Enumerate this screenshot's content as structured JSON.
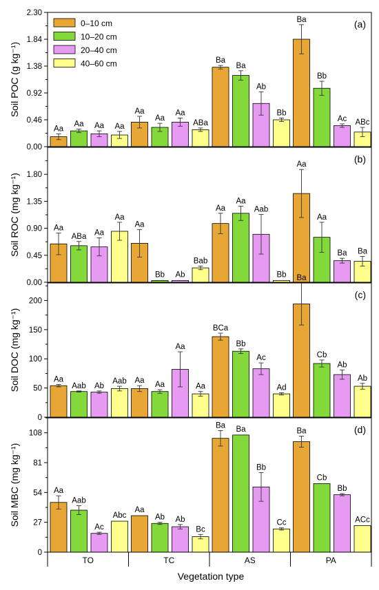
{
  "figure": {
    "xlabel": "Vegetation type",
    "categories": [
      "TO",
      "TC",
      "AS",
      "PA"
    ]
  },
  "legend": {
    "position": "top-left",
    "entries": [
      "0–10 cm",
      "10–20 cm",
      "20–40 cm",
      "40–60 cm"
    ],
    "colors": [
      "#E8A735",
      "#84D93A",
      "#E69AF2",
      "#FFFF8C"
    ]
  },
  "chart_data": [
    {
      "type": "bar",
      "panel": "(a)",
      "ylabel": "Soil POC (g kg⁻¹)",
      "ylim": [
        0,
        2.3
      ],
      "yticks": [
        "0.00",
        "0.46",
        "0.92",
        "1.38",
        "1.84",
        "2.30"
      ],
      "categories": [
        "TO",
        "TC",
        "AS",
        "PA"
      ],
      "series": [
        {
          "name": "0–10 cm",
          "values": [
            0.17,
            0.42,
            1.36,
            1.84
          ],
          "errors": [
            0.05,
            0.1,
            0.03,
            0.25
          ],
          "labels": [
            "Aa",
            "Aa",
            "Ba",
            "Ba"
          ]
        },
        {
          "name": "10–20 cm",
          "values": [
            0.27,
            0.33,
            1.22,
            1.0
          ],
          "errors": [
            0.03,
            0.07,
            0.08,
            0.12
          ],
          "labels": [
            "Aa",
            "Aa",
            "Ba",
            "Bb"
          ]
        },
        {
          "name": "20–40 cm",
          "values": [
            0.22,
            0.42,
            0.74,
            0.36
          ],
          "errors": [
            0.05,
            0.07,
            0.2,
            0.03
          ],
          "labels": [
            "Aa",
            "Aa",
            "Ab",
            "Ac"
          ]
        },
        {
          "name": "40–60 cm",
          "values": [
            0.2,
            0.29,
            0.46,
            0.25
          ],
          "errors": [
            0.06,
            0.03,
            0.03,
            0.08
          ],
          "labels": [
            "Aa",
            "ABa",
            "Bb",
            "ABc"
          ]
        }
      ]
    },
    {
      "type": "bar",
      "panel": "(b)",
      "ylabel": "Soil ROC (mg kg⁻¹)",
      "ylim": [
        0,
        2.25
      ],
      "yticks": [
        "0.00",
        "0.45",
        "0.90",
        "1.35",
        "1.80"
      ],
      "categories": [
        "TO",
        "TC",
        "AS",
        "PA"
      ],
      "series": [
        {
          "name": "0–10 cm",
          "values": [
            0.64,
            0.65,
            0.98,
            1.48
          ],
          "errors": [
            0.18,
            0.23,
            0.17,
            0.4
          ],
          "labels": [
            "Aa",
            "Aa",
            "Aa",
            "Aa"
          ]
        },
        {
          "name": "10–20 cm",
          "values": [
            0.61,
            0.03,
            1.15,
            0.75
          ],
          "errors": [
            0.07,
            0.0,
            0.12,
            0.25
          ],
          "labels": [
            "ABa",
            "Bb",
            "Aa",
            "Aa"
          ]
        },
        {
          "name": "20–40 cm",
          "values": [
            0.59,
            0.03,
            0.8,
            0.36
          ],
          "errors": [
            0.15,
            0.0,
            0.33,
            0.04
          ],
          "labels": [
            "Aa",
            "Ab",
            "Aab",
            "Ba"
          ]
        },
        {
          "name": "40–60 cm",
          "values": [
            0.85,
            0.24,
            0.03,
            0.35
          ],
          "errors": [
            0.15,
            0.03,
            0.0,
            0.08
          ],
          "labels": [
            "Aa",
            "Bab",
            "Bb",
            "Ba"
          ]
        }
      ]
    },
    {
      "type": "bar",
      "panel": "(c)",
      "ylabel": "Soil DOC (mg kg⁻¹)",
      "ylim": [
        0,
        230
      ],
      "yticks": [
        "0",
        "50",
        "100",
        "150",
        "200"
      ],
      "categories": [
        "TO",
        "TC",
        "AS",
        "PA"
      ],
      "series": [
        {
          "name": "0–10 cm",
          "values": [
            54,
            49,
            138,
            194
          ],
          "errors": [
            2,
            5,
            6,
            36
          ],
          "labels": [
            "Aa",
            "Aa",
            "BCa",
            "Ba"
          ]
        },
        {
          "name": "10–20 cm",
          "values": [
            44,
            44,
            113,
            92
          ],
          "errors": [
            1,
            3,
            4,
            6
          ],
          "labels": [
            "Aab",
            "Aa",
            "Bb",
            "Cb"
          ]
        },
        {
          "name": "20–40 cm",
          "values": [
            43,
            82,
            83,
            73
          ],
          "errors": [
            2,
            30,
            10,
            8
          ],
          "labels": [
            "Ab",
            "Aa",
            "Ac",
            "Ab"
          ]
        },
        {
          "name": "40–60 cm",
          "values": [
            49,
            40,
            40,
            53
          ],
          "errors": [
            4,
            4,
            2,
            5
          ],
          "labels": [
            "Aab",
            "Aa",
            "Ad",
            "Ab"
          ]
        }
      ]
    },
    {
      "type": "bar",
      "panel": "(d)",
      "ylabel": "Soil MBC (mg kg⁻¹)",
      "ylim": [
        0,
        121.5
      ],
      "yticks": [
        "0",
        "27",
        "54",
        "81",
        "108"
      ],
      "categories": [
        "TO",
        "TC",
        "AS",
        "PA"
      ],
      "series": [
        {
          "name": "0–10 cm",
          "values": [
            45,
            33,
            103,
            100
          ],
          "errors": [
            6,
            0,
            7,
            5
          ],
          "labels": [
            "Aa",
            "Aa",
            "Ba",
            "Ba"
          ]
        },
        {
          "name": "10–20 cm",
          "values": [
            38,
            26,
            106,
            62
          ],
          "errors": [
            4,
            1,
            0,
            0
          ],
          "labels": [
            "Aab",
            "Ab",
            "Ba",
            "Cb"
          ]
        },
        {
          "name": "20–40 cm",
          "values": [
            17,
            23,
            59,
            52
          ],
          "errors": [
            1,
            2,
            13,
            1
          ],
          "labels": [
            "Ac",
            "Ab",
            "Bb",
            "Bb"
          ]
        },
        {
          "name": "40–60 cm",
          "values": [
            28,
            14,
            21,
            24
          ],
          "errors": [
            0,
            2,
            1,
            0
          ],
          "labels": [
            "Abc",
            "Bc",
            "Cc",
            "ACc"
          ]
        }
      ]
    }
  ]
}
